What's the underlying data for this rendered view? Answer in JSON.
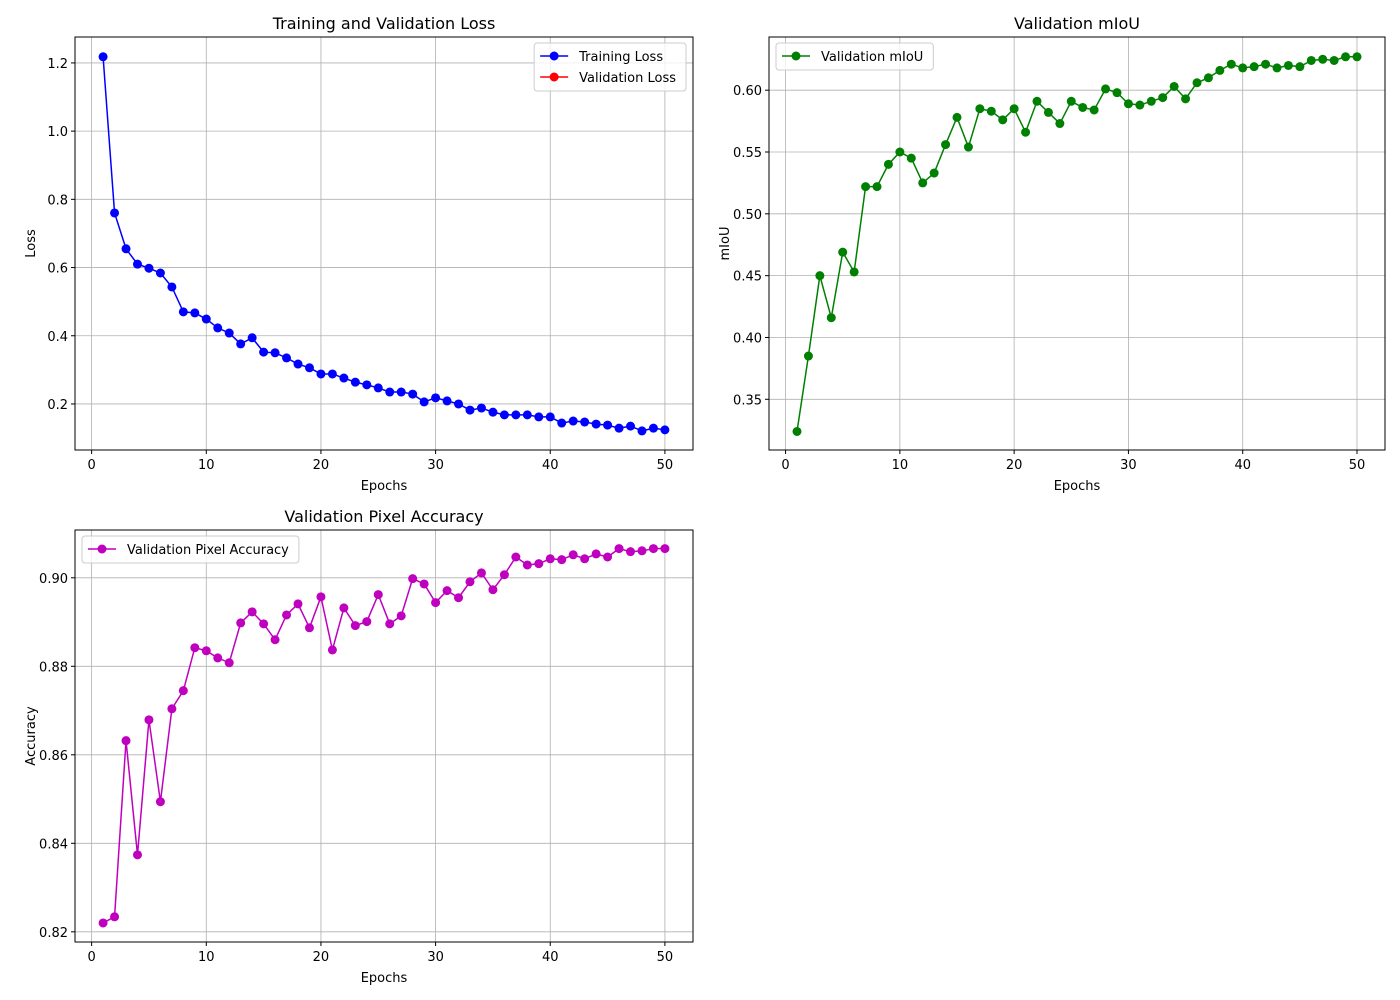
{
  "chart_data": [
    {
      "type": "line",
      "title": "Training and Validation Loss",
      "xlabel": "Epochs",
      "ylabel": "Loss",
      "x": [
        1,
        2,
        3,
        4,
        5,
        6,
        7,
        8,
        9,
        10,
        11,
        12,
        13,
        14,
        15,
        16,
        17,
        18,
        19,
        20,
        21,
        22,
        23,
        24,
        25,
        26,
        27,
        28,
        29,
        30,
        31,
        32,
        33,
        34,
        35,
        36,
        37,
        38,
        39,
        40,
        41,
        42,
        43,
        44,
        45,
        46,
        47,
        48,
        49,
        50
      ],
      "series": [
        {
          "name": "Training Loss",
          "color": "#0000ff",
          "values": [
            1.218,
            0.76,
            0.655,
            0.61,
            0.598,
            0.584,
            0.543,
            0.47,
            0.467,
            0.449,
            0.423,
            0.408,
            0.376,
            0.394,
            0.352,
            0.35,
            0.335,
            0.317,
            0.306,
            0.288,
            0.288,
            0.276,
            0.264,
            0.256,
            0.247,
            0.235,
            0.235,
            0.229,
            0.206,
            0.218,
            0.209,
            0.2,
            0.182,
            0.188,
            0.176,
            0.168,
            0.168,
            0.168,
            0.162,
            0.162,
            0.144,
            0.15,
            0.147,
            0.141,
            0.138,
            0.129,
            0.135,
            0.121,
            0.129,
            0.124
          ]
        },
        {
          "name": "Validation Loss",
          "color": "#ff0000",
          "values": [
            null,
            null,
            null,
            null,
            null,
            null,
            null,
            null,
            null,
            null,
            null,
            null,
            null,
            null,
            null,
            null,
            null,
            null,
            null,
            null,
            null,
            null,
            null,
            null,
            null,
            null,
            null,
            null,
            null,
            null,
            null,
            null,
            null,
            null,
            null,
            null,
            null,
            null,
            null,
            null,
            null,
            null,
            null,
            null,
            null,
            null,
            null,
            null,
            null,
            null
          ]
        }
      ],
      "xlim": [
        -1.45,
        52.45
      ],
      "xticks": [
        0,
        10,
        20,
        30,
        40,
        50
      ],
      "ylim": [
        0.065,
        1.276
      ],
      "yticks": [
        0.2,
        0.4,
        0.6,
        0.8,
        {
          "value": 1.0,
          "label": "1.0"
        },
        1.2
      ],
      "grid": true,
      "legend": "upper right"
    },
    {
      "type": "line",
      "title": "Validation mIoU",
      "xlabel": "Epochs",
      "ylabel": "mIoU",
      "x": [
        1,
        2,
        3,
        4,
        5,
        6,
        7,
        8,
        9,
        10,
        11,
        12,
        13,
        14,
        15,
        16,
        17,
        18,
        19,
        20,
        21,
        22,
        23,
        24,
        25,
        26,
        27,
        28,
        29,
        30,
        31,
        32,
        33,
        34,
        35,
        36,
        37,
        38,
        39,
        40,
        41,
        42,
        43,
        44,
        45,
        46,
        47,
        48,
        49,
        50
      ],
      "series": [
        {
          "name": "Validation mIoU",
          "color": "#008000",
          "values": [
            0.324,
            0.385,
            0.45,
            0.416,
            0.469,
            0.453,
            0.522,
            0.522,
            0.54,
            0.55,
            0.545,
            0.525,
            0.533,
            0.556,
            0.578,
            0.554,
            0.585,
            0.583,
            0.576,
            0.585,
            0.566,
            0.591,
            0.582,
            0.573,
            0.591,
            0.586,
            0.584,
            0.601,
            0.598,
            0.589,
            0.588,
            0.591,
            0.594,
            0.603,
            0.593,
            0.606,
            0.61,
            0.616,
            0.621,
            0.618,
            0.619,
            0.621,
            0.618,
            0.62,
            0.619,
            0.624,
            0.625,
            0.624,
            0.627,
            0.627
          ]
        }
      ],
      "xlim": [
        -1.45,
        52.45
      ],
      "xticks": [
        0,
        10,
        20,
        30,
        40,
        50
      ],
      "ylim": [
        0.309,
        0.643
      ],
      "yticks": [
        0.35,
        {
          "value": 0.4,
          "label": "0.40"
        },
        0.45,
        {
          "value": 0.5,
          "label": "0.50"
        },
        0.55,
        {
          "value": 0.6,
          "label": "0.60"
        }
      ],
      "grid": true,
      "legend": "upper left"
    },
    {
      "type": "line",
      "title": "Validation Pixel Accuracy",
      "xlabel": "Epochs",
      "ylabel": "Accuracy",
      "x": [
        1,
        2,
        3,
        4,
        5,
        6,
        7,
        8,
        9,
        10,
        11,
        12,
        13,
        14,
        15,
        16,
        17,
        18,
        19,
        20,
        21,
        22,
        23,
        24,
        25,
        26,
        27,
        28,
        29,
        30,
        31,
        32,
        33,
        34,
        35,
        36,
        37,
        38,
        39,
        40,
        41,
        42,
        43,
        44,
        45,
        46,
        47,
        48,
        49,
        50
      ],
      "series": [
        {
          "name": "Validation Pixel Accuracy",
          "color": "#bf00bf",
          "values": [
            0.822,
            0.8234,
            0.8632,
            0.8374,
            0.8679,
            0.8494,
            0.8704,
            0.8745,
            0.8842,
            0.8835,
            0.8819,
            0.8808,
            0.8898,
            0.8923,
            0.8896,
            0.886,
            0.8916,
            0.8941,
            0.8887,
            0.8957,
            0.8837,
            0.8932,
            0.8892,
            0.8901,
            0.8962,
            0.8896,
            0.8914,
            0.8998,
            0.8986,
            0.8944,
            0.8971,
            0.8955,
            0.8991,
            0.9011,
            0.8973,
            0.9007,
            0.9047,
            0.9029,
            0.9032,
            0.9043,
            0.9041,
            0.9052,
            0.9043,
            0.9054,
            0.9047,
            0.9066,
            0.9059,
            0.9061,
            0.9066,
            0.9066
          ]
        }
      ],
      "xlim": [
        -1.45,
        52.45
      ],
      "xticks": [
        0,
        10,
        20,
        30,
        40,
        50
      ],
      "ylim": [
        0.8177,
        0.9108
      ],
      "yticks": [
        0.82,
        0.84,
        0.86,
        0.88,
        {
          "value": 0.9,
          "label": "0.90"
        }
      ],
      "grid": true,
      "legend": "upper left"
    }
  ]
}
